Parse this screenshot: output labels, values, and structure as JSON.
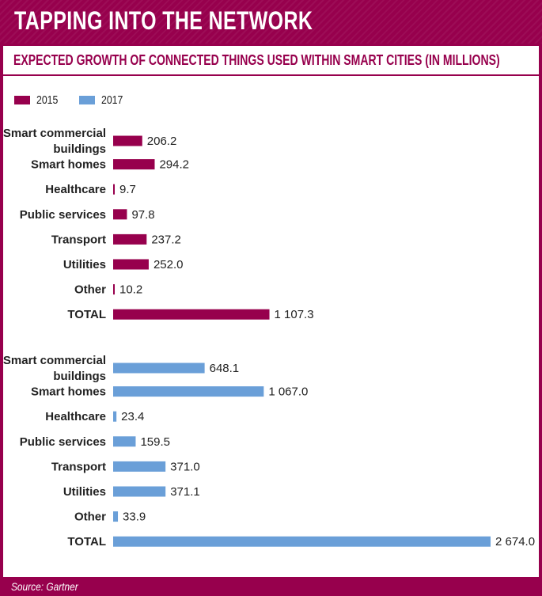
{
  "header": {
    "title": "TAPPING INTO THE NETWORK"
  },
  "colors": {
    "brand": "#97004d",
    "series_2015": "#97004d",
    "series_2017": "#6a9fd8"
  },
  "legend": [
    {
      "label": "2015",
      "color": "#97004d"
    },
    {
      "label": "2017",
      "color": "#6a9fd8"
    }
  ],
  "chart_data": {
    "type": "bar",
    "orientation": "horizontal",
    "title": "EXPECTED GROWTH OF CONNECTED THINGS USED WITHIN SMART CITIES (IN MILLIONS)",
    "legend_position": "top-left",
    "grid": false,
    "xlim": [
      0,
      2674.0
    ],
    "groups": [
      {
        "name": "2015",
        "color": "#97004d",
        "bars": [
          {
            "category": [
              "Smart commercial",
              "buildings"
            ],
            "value": 206.2,
            "label": "206.2"
          },
          {
            "category": [
              "Smart homes"
            ],
            "value": 294.2,
            "label": "294.2"
          },
          {
            "category": [
              "Healthcare"
            ],
            "value": 9.7,
            "label": "9.7"
          },
          {
            "category": [
              "Public services"
            ],
            "value": 97.8,
            "label": "97.8"
          },
          {
            "category": [
              "Transport"
            ],
            "value": 237.2,
            "label": "237.2"
          },
          {
            "category": [
              "Utilities"
            ],
            "value": 252.0,
            "label": "252.0"
          },
          {
            "category": [
              "Other"
            ],
            "value": 10.2,
            "label": "10.2"
          },
          {
            "category": [
              "TOTAL"
            ],
            "value": 1107.3,
            "label": "1 107.3"
          }
        ]
      },
      {
        "name": "2017",
        "color": "#6a9fd8",
        "bars": [
          {
            "category": [
              "Smart commercial",
              "buildings"
            ],
            "value": 648.1,
            "label": "648.1"
          },
          {
            "category": [
              "Smart homes"
            ],
            "value": 1067.0,
            "label": "1 067.0"
          },
          {
            "category": [
              "Healthcare"
            ],
            "value": 23.4,
            "label": "23.4"
          },
          {
            "category": [
              "Public services"
            ],
            "value": 159.5,
            "label": "159.5"
          },
          {
            "category": [
              "Transport"
            ],
            "value": 371.0,
            "label": "371.0"
          },
          {
            "category": [
              "Utilities"
            ],
            "value": 371.1,
            "label": "371.1"
          },
          {
            "category": [
              "Other"
            ],
            "value": 33.9,
            "label": "33.9"
          },
          {
            "category": [
              "TOTAL"
            ],
            "value": 2674.0,
            "label": "2 674.0"
          }
        ]
      }
    ]
  },
  "footer": {
    "source": "Source: Gartner"
  }
}
